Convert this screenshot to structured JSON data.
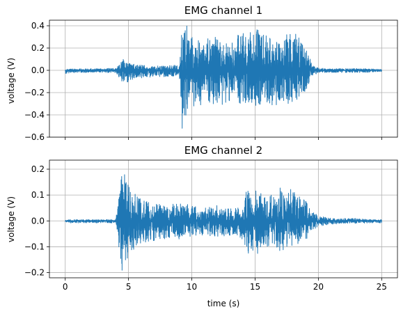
{
  "chart_data": [
    {
      "type": "line",
      "title": "EMG channel 1",
      "xlabel": "",
      "ylabel": "voltage (V)",
      "xlim": [
        -1.25,
        26.25
      ],
      "ylim": [
        -0.6,
        0.45
      ],
      "xticks": [
        0,
        5,
        10,
        15,
        20,
        25
      ],
      "yticks": [
        -0.6,
        -0.4,
        -0.2,
        0.0,
        0.2,
        0.4
      ],
      "ytick_labels": [
        "−0.6",
        "−0.4",
        "−0.2",
        "0.0",
        "0.2",
        "0.4"
      ],
      "grid": true,
      "color": "#1f77b4",
      "series": [
        {
          "x": [
            0,
            1,
            2,
            3,
            4,
            4.6,
            5.2,
            6,
            7,
            8,
            9,
            9.2,
            9.5,
            10,
            11,
            12,
            13,
            14,
            15,
            16,
            16.5,
            17,
            18,
            19,
            19.5,
            20,
            21,
            22,
            23,
            24,
            25
          ],
          "y_max": [
            0.01,
            0.015,
            0.015,
            0.015,
            0.02,
            0.1,
            0.06,
            0.05,
            0.04,
            0.04,
            0.05,
            0.35,
            0.43,
            0.3,
            0.3,
            0.3,
            0.25,
            0.35,
            0.38,
            0.3,
            0.38,
            0.25,
            0.4,
            0.2,
            0.06,
            0.02,
            0.015,
            0.015,
            0.015,
            0.015,
            0.01
          ],
          "y_min": [
            -0.03,
            -0.02,
            -0.02,
            -0.02,
            -0.03,
            -0.12,
            -0.1,
            -0.07,
            -0.06,
            -0.06,
            -0.06,
            -0.55,
            -0.45,
            -0.35,
            -0.3,
            -0.32,
            -0.3,
            -0.3,
            -0.35,
            -0.3,
            -0.32,
            -0.3,
            -0.3,
            -0.2,
            -0.06,
            -0.02,
            -0.02,
            -0.02,
            -0.02,
            -0.02,
            -0.01
          ]
        }
      ]
    },
    {
      "type": "line",
      "title": "EMG channel 2",
      "xlabel": "time (s)",
      "ylabel": "voltage (V)",
      "xlim": [
        -1.25,
        26.25
      ],
      "ylim": [
        -0.22,
        0.235
      ],
      "xticks": [
        0,
        5,
        10,
        15,
        20,
        25
      ],
      "xtick_labels": [
        "0",
        "5",
        "10",
        "15",
        "20",
        "25"
      ],
      "yticks": [
        -0.2,
        -0.1,
        0.0,
        0.1,
        0.2
      ],
      "ytick_labels": [
        "−0.2",
        "−0.1",
        "0.0",
        "0.1",
        "0.2"
      ],
      "grid": true,
      "color": "#1f77b4",
      "series": [
        {
          "x": [
            0,
            1,
            2,
            3,
            4,
            4.4,
            4.7,
            5,
            6,
            7,
            8,
            9,
            10,
            11,
            12,
            13,
            14,
            14.3,
            15,
            16,
            17,
            18,
            19,
            19.5,
            20,
            21,
            22,
            23,
            24,
            25
          ],
          "y_max": [
            0.005,
            0.005,
            0.005,
            0.005,
            0.005,
            0.19,
            0.21,
            0.15,
            0.08,
            0.07,
            0.06,
            0.07,
            0.06,
            0.05,
            0.06,
            0.05,
            0.05,
            0.13,
            0.12,
            0.1,
            0.13,
            0.12,
            0.08,
            0.04,
            0.02,
            0.01,
            0.01,
            0.01,
            0.005,
            0.005
          ],
          "y_min": [
            -0.008,
            -0.008,
            -0.008,
            -0.008,
            -0.008,
            -0.19,
            -0.2,
            -0.13,
            -0.09,
            -0.08,
            -0.07,
            -0.07,
            -0.06,
            -0.06,
            -0.06,
            -0.06,
            -0.07,
            -0.12,
            -0.14,
            -0.11,
            -0.12,
            -0.1,
            -0.08,
            -0.04,
            -0.02,
            -0.015,
            -0.01,
            -0.01,
            -0.008,
            -0.008
          ]
        }
      ]
    }
  ]
}
